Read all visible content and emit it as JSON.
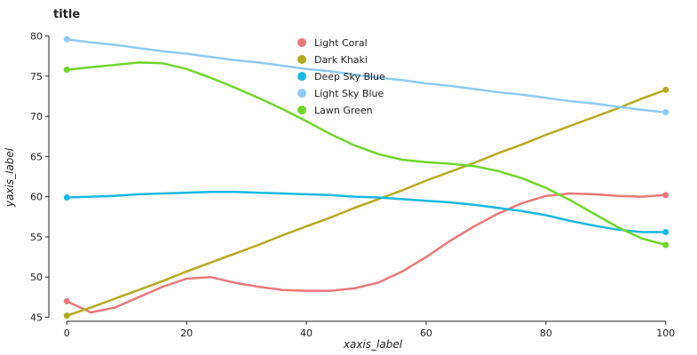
{
  "chart_data": {
    "type": "line",
    "title": "title",
    "xlabel": "xaxis_label",
    "ylabel": "yaxis_label",
    "xlim": [
      -3,
      103
    ],
    "ylim": [
      44.5,
      80.5
    ],
    "x_ticks": [
      0,
      20,
      40,
      60,
      80,
      100
    ],
    "y_ticks": [
      45,
      50,
      55,
      60,
      65,
      70,
      75,
      80
    ],
    "legend_position": "top-center",
    "grid": false,
    "series": [
      {
        "name": "Light Coral",
        "color": "#e8787a",
        "x": [
          0,
          4,
          8,
          12,
          16,
          20,
          24,
          28,
          32,
          36,
          40,
          44,
          48,
          52,
          56,
          60,
          64,
          68,
          72,
          76,
          80,
          84,
          88,
          92,
          96,
          100
        ],
        "y": [
          47.0,
          45.6,
          46.2,
          47.5,
          48.8,
          49.8,
          50.0,
          49.3,
          48.8,
          48.4,
          48.3,
          48.3,
          48.6,
          49.3,
          50.7,
          52.5,
          54.5,
          56.3,
          57.9,
          59.2,
          60.1,
          60.4,
          60.3,
          60.1,
          60.0,
          60.2
        ]
      },
      {
        "name": "Dark Khaki",
        "color": "#b5aa1e",
        "x": [
          0,
          4,
          8,
          12,
          16,
          20,
          24,
          28,
          32,
          36,
          40,
          44,
          48,
          52,
          56,
          60,
          64,
          68,
          72,
          76,
          80,
          84,
          88,
          92,
          96,
          100
        ],
        "y": [
          45.2,
          46.2,
          47.3,
          48.4,
          49.5,
          50.7,
          51.8,
          52.9,
          54.0,
          55.2,
          56.3,
          57.4,
          58.6,
          59.7,
          60.8,
          62.0,
          63.1,
          64.2,
          65.4,
          66.5,
          67.7,
          68.8,
          69.9,
          71.0,
          72.2,
          73.3
        ]
      },
      {
        "name": "Deep Sky Blue",
        "color": "#18b8e0",
        "x": [
          0,
          4,
          8,
          12,
          16,
          20,
          24,
          28,
          32,
          36,
          40,
          44,
          48,
          52,
          56,
          60,
          64,
          68,
          72,
          76,
          80,
          84,
          88,
          92,
          96,
          100
        ],
        "y": [
          59.9,
          60.0,
          60.1,
          60.3,
          60.4,
          60.5,
          60.6,
          60.6,
          60.5,
          60.4,
          60.3,
          60.2,
          60.0,
          59.9,
          59.7,
          59.5,
          59.3,
          59.0,
          58.6,
          58.2,
          57.7,
          57.0,
          56.4,
          55.9,
          55.6,
          55.6
        ]
      },
      {
        "name": "Light Sky Blue",
        "color": "#8ecaf2",
        "x": [
          0,
          4,
          8,
          12,
          16,
          20,
          24,
          28,
          32,
          36,
          40,
          44,
          48,
          52,
          56,
          60,
          64,
          68,
          72,
          76,
          80,
          84,
          88,
          92,
          96,
          100
        ],
        "y": [
          79.6,
          79.2,
          78.9,
          78.5,
          78.1,
          77.8,
          77.4,
          77.0,
          76.7,
          76.3,
          75.9,
          75.6,
          75.2,
          74.8,
          74.5,
          74.1,
          73.8,
          73.4,
          73.0,
          72.7,
          72.3,
          71.9,
          71.6,
          71.2,
          70.8,
          70.5
        ]
      },
      {
        "name": "Lawn Green",
        "color": "#6fd62a",
        "x": [
          0,
          4,
          8,
          12,
          16,
          20,
          24,
          28,
          32,
          36,
          40,
          44,
          48,
          52,
          56,
          60,
          64,
          68,
          72,
          76,
          80,
          84,
          88,
          92,
          96,
          100
        ],
        "y": [
          75.8,
          76.1,
          76.4,
          76.7,
          76.6,
          75.9,
          74.8,
          73.6,
          72.3,
          70.9,
          69.4,
          67.8,
          66.4,
          65.3,
          64.6,
          64.3,
          64.1,
          63.8,
          63.2,
          62.3,
          61.1,
          59.6,
          57.9,
          56.2,
          54.8,
          54.0
        ]
      }
    ]
  }
}
